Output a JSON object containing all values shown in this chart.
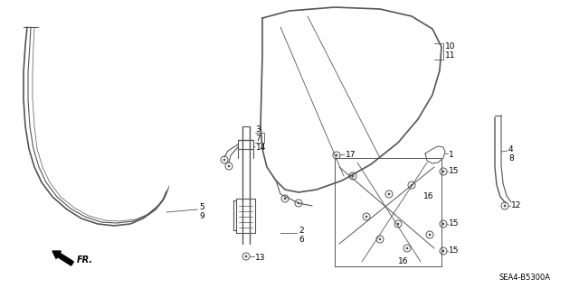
{
  "diagram_code": "SEA4-B5300A",
  "background_color": "#ffffff",
  "line_color": "#555555",
  "text_color": "#000000",
  "fig_width": 6.4,
  "fig_height": 3.19
}
